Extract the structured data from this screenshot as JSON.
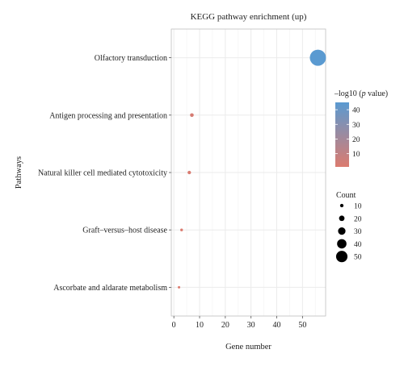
{
  "chart_data": {
    "type": "scatter",
    "title": "KEGG pathway enrichment (up)",
    "xlabel": "Gene number",
    "ylabel": "Pathways",
    "xlim": [
      -1,
      59
    ],
    "x_ticks": [
      0,
      10,
      20,
      30,
      40,
      50
    ],
    "grid": true,
    "legend_position": "right",
    "categories": [
      "Ascorbate and aldarate metabolism",
      "Graft–versus–host disease",
      "Natural killer cell mediated cytotoxicity",
      "Antigen processing and presentation",
      "Olfactory transduction"
    ],
    "points": [
      {
        "pathway": "Ascorbate and aldarate metabolism",
        "gene_number": 2,
        "count": 2,
        "neg_log10_p": 1
      },
      {
        "pathway": "Graft–versus–host disease",
        "gene_number": 3,
        "count": 3,
        "neg_log10_p": 1.5
      },
      {
        "pathway": "Natural killer cell mediated cytotoxicity",
        "gene_number": 6,
        "count": 6,
        "neg_log10_p": 2
      },
      {
        "pathway": "Antigen processing and presentation",
        "gene_number": 7,
        "count": 7,
        "neg_log10_p": 3
      },
      {
        "pathway": "Olfactory transduction",
        "gene_number": 56,
        "count": 56,
        "neg_log10_p": 45
      }
    ],
    "color_legend": {
      "title_prefix": "–log10 (",
      "title_italic": "p",
      "title_suffix": " value)",
      "ticks": [
        10,
        20,
        30,
        40
      ],
      "range": [
        1,
        45
      ],
      "low_color": "#dc7b6f",
      "high_color": "#5a9ad1"
    },
    "size_legend": {
      "title": "Count",
      "values": [
        10,
        20,
        30,
        40,
        50
      ],
      "color": "#000000"
    }
  }
}
